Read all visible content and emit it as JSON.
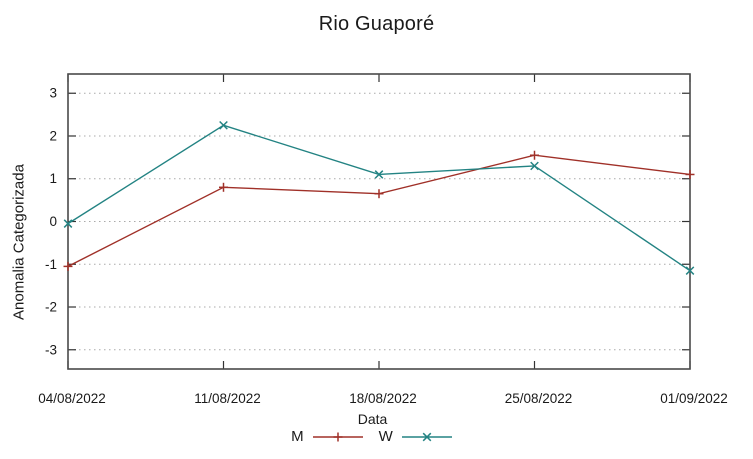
{
  "chart_data": {
    "type": "line",
    "title": "Rio Guaporé",
    "xlabel": "Data",
    "ylabel": "Anomalia Categorizada",
    "categories": [
      "04/08/2022",
      "11/08/2022",
      "18/08/2022",
      "25/08/2022",
      "01/09/2022"
    ],
    "yticks": [
      -3,
      -2,
      -1,
      0,
      1,
      2,
      3
    ],
    "ytick_labels": [
      "-3",
      "-2",
      "-1",
      "0",
      "1",
      "2",
      "3"
    ],
    "ylim": [
      -3.45,
      3.45
    ],
    "grid": "horizontal-dotted",
    "legend_position": "bottom-center",
    "series": [
      {
        "name": "M",
        "marker": "plus",
        "color": "#a03028",
        "values": [
          -1.05,
          0.8,
          0.65,
          1.55,
          1.1
        ]
      },
      {
        "name": "W",
        "marker": "cross",
        "color": "#238383",
        "values": [
          -0.05,
          2.25,
          1.1,
          1.3,
          -1.15
        ]
      }
    ],
    "colors": {
      "background": "#ffffff",
      "border": "#4a4a4a",
      "grid": "#aaaaaa",
      "tick": "#333333",
      "text": "#1a1a1a"
    }
  }
}
